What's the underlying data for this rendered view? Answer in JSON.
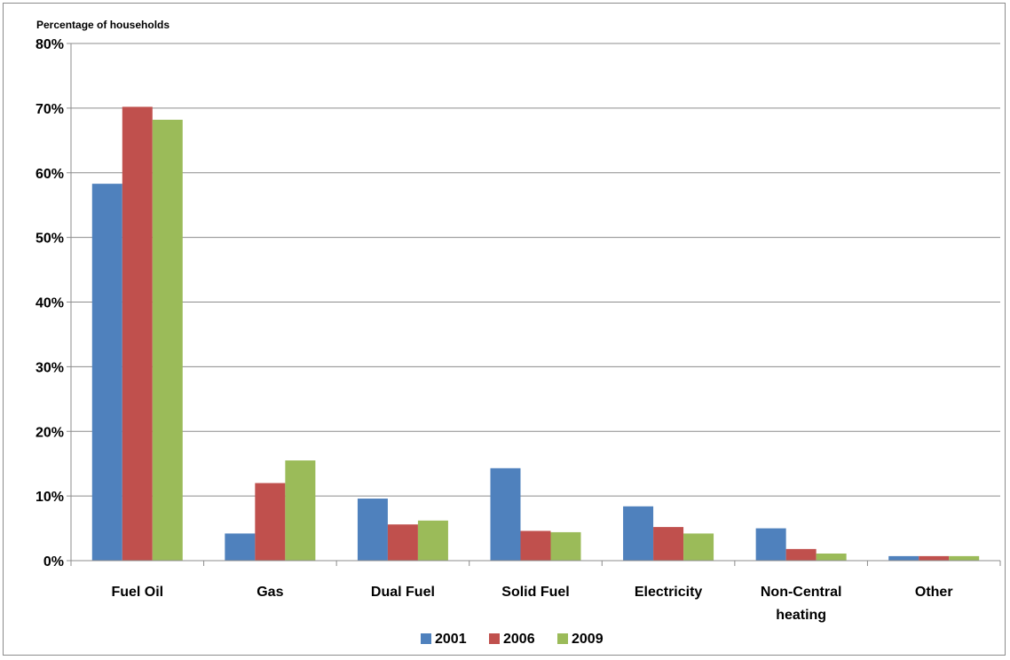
{
  "chart_data": {
    "type": "bar",
    "ylabel": "Percentage of households",
    "ylim": [
      0,
      80
    ],
    "yticks": [
      "0%",
      "10%",
      "20%",
      "30%",
      "40%",
      "50%",
      "60%",
      "70%",
      "80%"
    ],
    "ytick_values": [
      0,
      10,
      20,
      30,
      40,
      50,
      60,
      70,
      80
    ],
    "grid": true,
    "legend_position": "bottom",
    "categories": [
      [
        "Fuel Oil"
      ],
      [
        "Gas"
      ],
      [
        "Dual Fuel"
      ],
      [
        "Solid Fuel"
      ],
      [
        "Electricity"
      ],
      [
        "Non-Central",
        "heating"
      ],
      [
        "Other"
      ]
    ],
    "series": [
      {
        "name": "2001",
        "color": "#4f81bd",
        "values": [
          58.3,
          4.2,
          9.6,
          14.3,
          8.4,
          5.0,
          0.7
        ]
      },
      {
        "name": "2006",
        "color": "#c0504d",
        "values": [
          70.2,
          12.0,
          5.6,
          4.6,
          5.2,
          1.8,
          0.7
        ]
      },
      {
        "name": "2009",
        "color": "#9bbb59",
        "values": [
          68.2,
          15.5,
          6.2,
          4.4,
          4.2,
          1.1,
          0.7
        ]
      }
    ]
  }
}
